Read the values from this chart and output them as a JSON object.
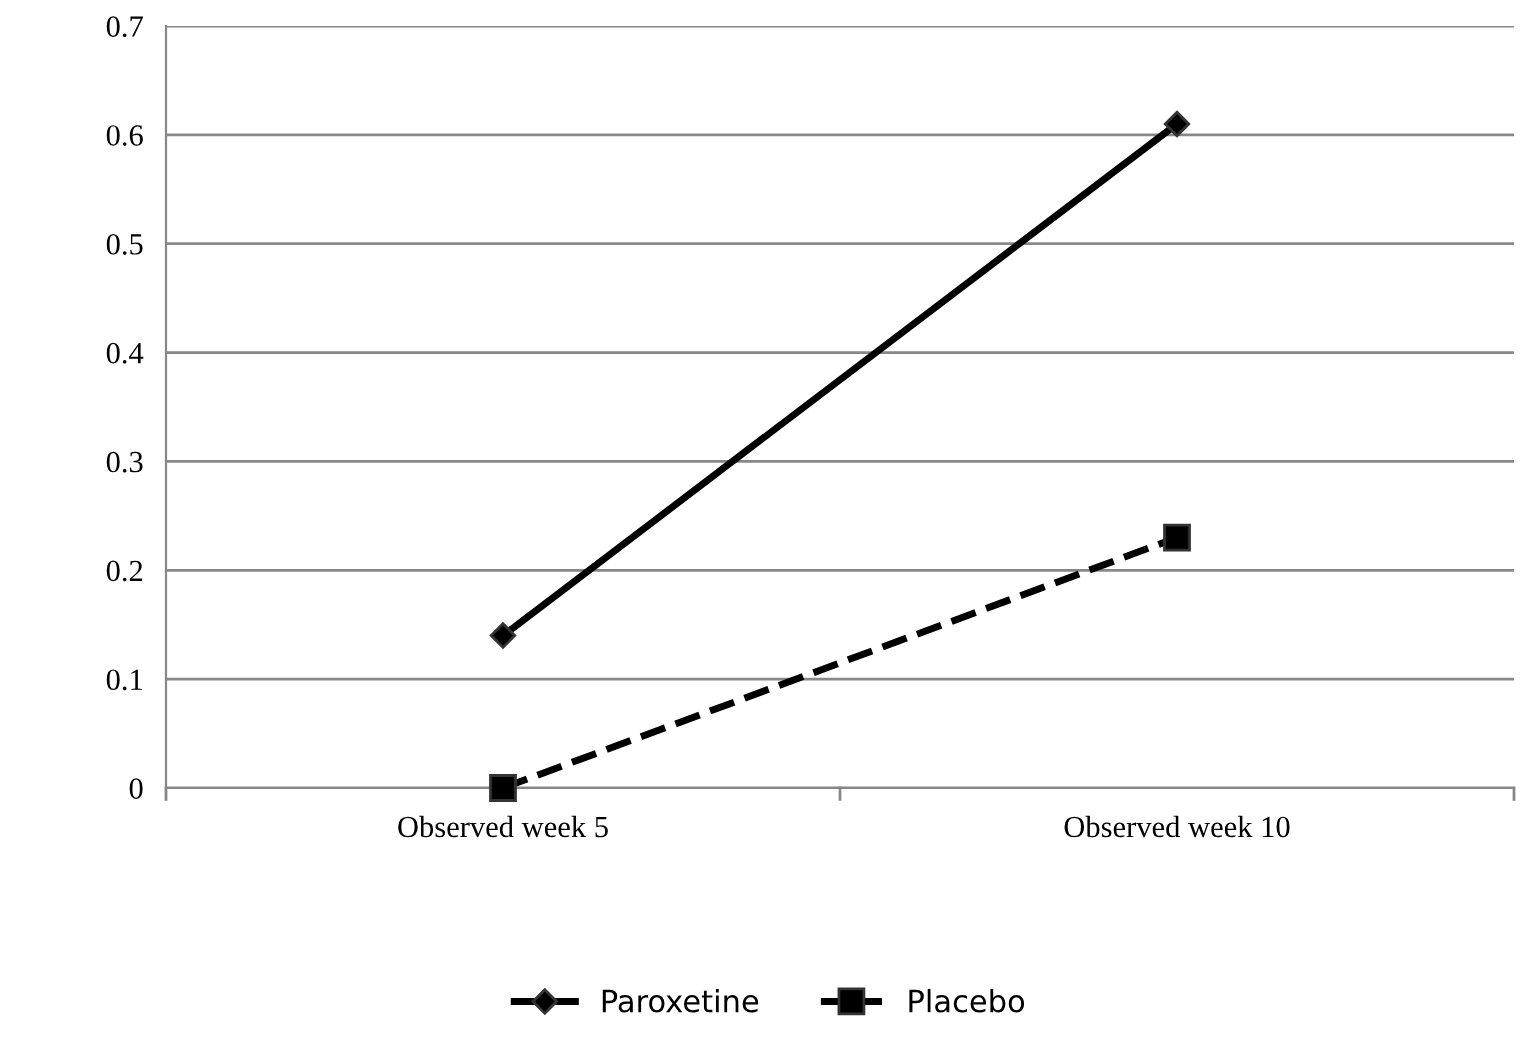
{
  "chart_data": {
    "type": "line",
    "categories": [
      "Observed week 5",
      "Observed week 10"
    ],
    "series": [
      {
        "name": "Paroxetine",
        "color": "#000000",
        "values": [
          0.14,
          0.61
        ],
        "marker": "diamond",
        "line_style": "solid"
      },
      {
        "name": "Placebo",
        "color": "#000000",
        "values": [
          0.0,
          0.23
        ],
        "marker": "square",
        "line_style": "dashed"
      }
    ],
    "ylim": [
      0,
      0.7
    ],
    "yticks": [
      0,
      0.1,
      0.2,
      0.3,
      0.4,
      0.5,
      0.6,
      0.7
    ],
    "grid": "y",
    "legend": "bottom"
  }
}
